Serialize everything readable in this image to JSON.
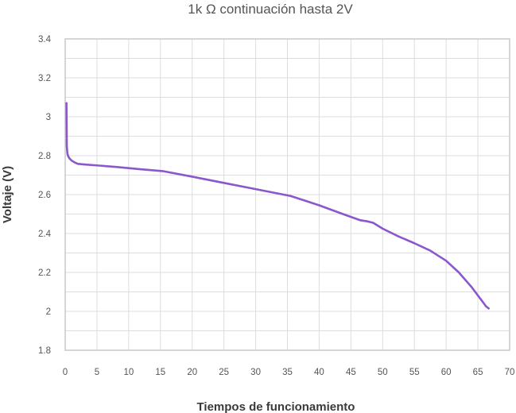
{
  "chart_data": {
    "type": "line",
    "title": "1k Ω continuación hasta 2V",
    "xlabel": "Tiempos de funcionamiento",
    "ylabel": "Voltaje (V)",
    "xlim": [
      0,
      70
    ],
    "ylim": [
      1.8,
      3.4
    ],
    "x_ticks": [
      0,
      5,
      10,
      15,
      20,
      25,
      30,
      35,
      40,
      45,
      50,
      55,
      60,
      65,
      70
    ],
    "x_tick_labels": [
      "0",
      "5",
      "10",
      "15",
      "20",
      "25",
      "30",
      "35",
      "40",
      "45",
      "50",
      "55",
      "60",
      "65",
      "70"
    ],
    "y_ticks": [
      1.8,
      2.0,
      2.2,
      2.4,
      2.6,
      2.8,
      3.0,
      3.2,
      3.4
    ],
    "y_tick_labels": [
      "1.8",
      "2",
      "2.2",
      "2.4",
      "2.6",
      "2.8",
      "3",
      "3.2",
      "3.4"
    ],
    "grid": true,
    "legend": "none",
    "series": [
      {
        "color": "#8b57cc",
        "x": [
          0.2,
          0.25,
          0.35,
          0.5,
          0.7,
          1.0,
          1.5,
          2.0,
          3.0,
          5.0,
          8.0,
          12.0,
          15.5,
          20.0,
          25.0,
          30.0,
          35.5,
          40.0,
          44.0,
          46.5,
          47.5,
          48.5,
          50.0,
          52.5,
          55.0,
          57.5,
          60.0,
          62.0,
          64.0,
          65.5,
          66.3,
          66.7
        ],
        "values": [
          3.07,
          2.85,
          2.81,
          2.795,
          2.785,
          2.775,
          2.765,
          2.758,
          2.755,
          2.75,
          2.742,
          2.73,
          2.72,
          2.692,
          2.66,
          2.628,
          2.593,
          2.545,
          2.497,
          2.468,
          2.463,
          2.455,
          2.425,
          2.385,
          2.35,
          2.312,
          2.26,
          2.2,
          2.125,
          2.06,
          2.025,
          2.015
        ]
      }
    ]
  }
}
